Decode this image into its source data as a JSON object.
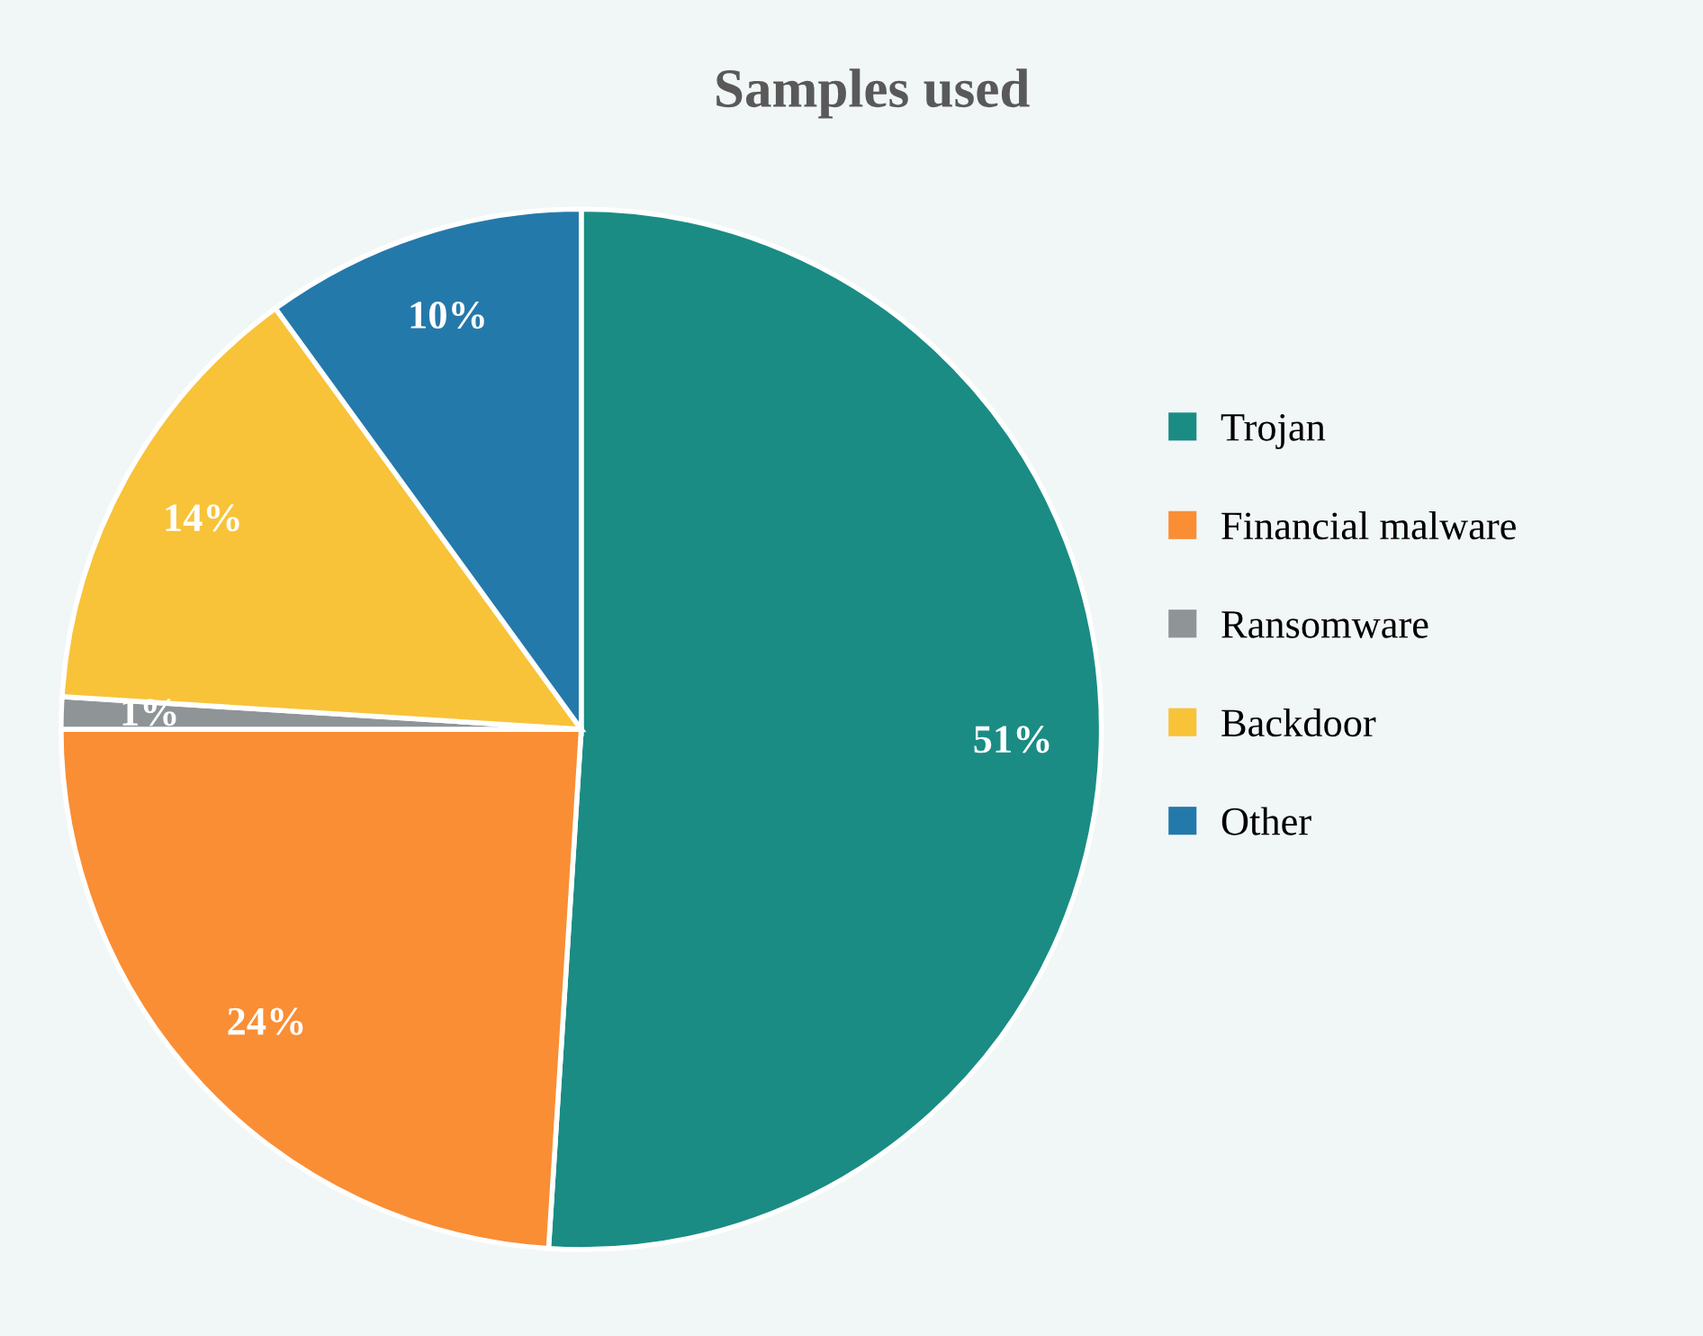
{
  "chart_data": {
    "type": "pie",
    "title": "Samples used",
    "categories": [
      "Trojan",
      "Financial malware",
      "Ransomware",
      "Backdoor",
      "Other"
    ],
    "values": [
      51,
      24,
      1,
      14,
      10
    ],
    "colors": [
      "#1a8c84",
      "#f98e35",
      "#8f9597",
      "#f8c339",
      "#2479ab"
    ],
    "value_labels": [
      "51%",
      "24%",
      "1%",
      "14%",
      "10%"
    ],
    "legend": "right"
  }
}
